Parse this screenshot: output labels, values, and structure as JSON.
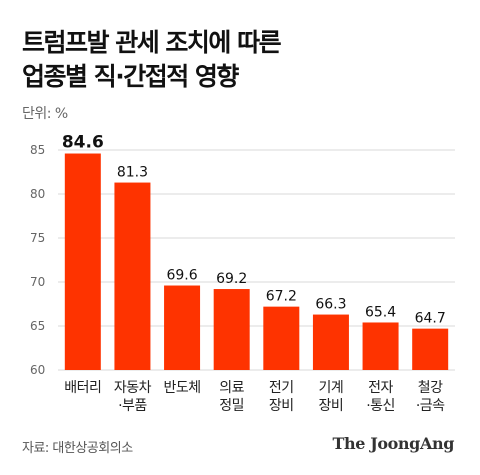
{
  "title_line1": "트럼프발 관세 조치에 따른",
  "title_line2": "업종별 직·간접적 영향",
  "unit_label": "단위: %",
  "source": "자료: 대한상공회의소",
  "logo": "The JoongAng",
  "colors": {
    "bar": "#fe3300",
    "grid": "#d8d8d8",
    "tick": "#666666"
  },
  "chart_data": {
    "type": "bar",
    "title": "트럼프발 관세 조치에 따른 업종별 직·간접적 영향",
    "ylabel": "단위: %",
    "ylim": [
      60,
      85
    ],
    "yticks": [
      60,
      65,
      70,
      75,
      80,
      85
    ],
    "grid": true,
    "categories": [
      [
        "배터리"
      ],
      [
        "자동차",
        "·부품"
      ],
      [
        "반도체"
      ],
      [
        "의료",
        "정밀"
      ],
      [
        "전기",
        "장비"
      ],
      [
        "기계",
        "장비"
      ],
      [
        "전자",
        "·통신"
      ],
      [
        "철강",
        "·금속"
      ]
    ],
    "values": [
      84.6,
      81.3,
      69.6,
      69.2,
      67.2,
      66.3,
      65.4,
      64.7
    ],
    "labels": [
      "84.6",
      "81.3",
      "69.6",
      "69.2",
      "67.2",
      "66.3",
      "65.4",
      "64.7"
    ]
  }
}
